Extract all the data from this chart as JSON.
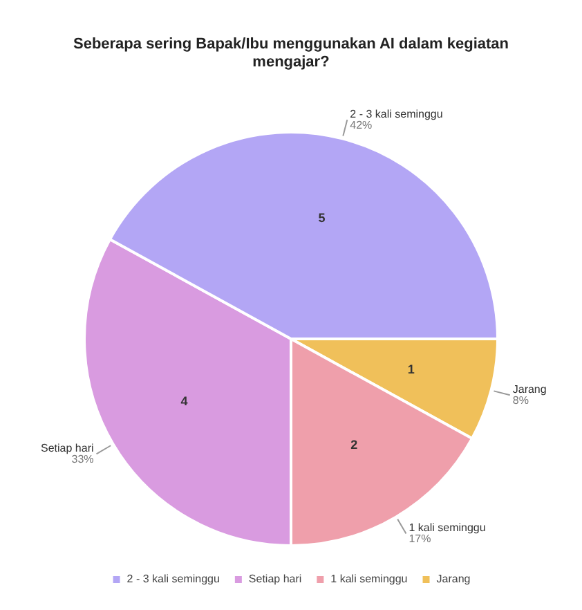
{
  "chart_data": {
    "type": "pie",
    "title": "Seberapa sering Bapak/Ibu menggunakan AI dalam kegiatan mengajar?",
    "categories": [
      "2 - 3 kali seminggu",
      "Setiap hari",
      "1 kali seminggu",
      "Jarang"
    ],
    "values": [
      42,
      33,
      17,
      8
    ],
    "value_labels": [
      "42%",
      "33%",
      "17%",
      "8%"
    ],
    "annotations": [
      {
        "text": "5",
        "x": "2 - 3 kali seminggu"
      },
      {
        "text": "4",
        "x": "Setiap hari"
      },
      {
        "text": "2",
        "x": "1 kali seminggu"
      },
      {
        "text": "1",
        "x": "Jarang"
      }
    ],
    "colors": [
      "#b3a6f5",
      "#d99be0",
      "#ef9fab",
      "#f0c05a"
    ],
    "legend": "bottom"
  }
}
